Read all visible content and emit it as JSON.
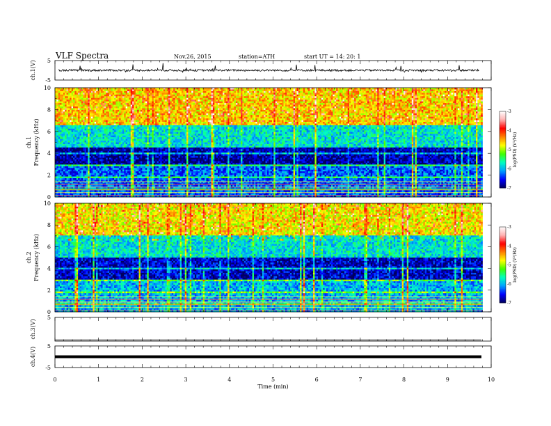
{
  "header": {
    "title": "VLF  Spectra",
    "date": "Nov.26, 2015",
    "station": "station=ATH",
    "start": "start  UT  =    14: 20: 1"
  },
  "chart_data": [
    {
      "type": "line",
      "panel": "ch1-waveform",
      "ylabel": "ch.1(V)",
      "ylim": [
        -5,
        5
      ],
      "yticks": [
        "5",
        "-5"
      ],
      "baseline": 0,
      "description_values": {
        "typical_amplitude_V": 0.5,
        "max_spike_V": 2.5
      }
    },
    {
      "type": "heatmap",
      "panel": "ch1-spectrogram",
      "ylabel": [
        "ch.1",
        "Frequency  (kHz)"
      ],
      "ylim": [
        0,
        10
      ],
      "yticks": [
        "0",
        "2",
        "4",
        "6",
        "8",
        "10"
      ],
      "colorbar": {
        "label": "log(PSD) (V²/Hz)",
        "range": [
          -7,
          -3
        ],
        "ticks": [
          "-3",
          "-4",
          "-5",
          "-6",
          "-7"
        ]
      },
      "bands": [
        {
          "from_khz": 0.0,
          "to_khz": 3.0,
          "log_psd": -6.3
        },
        {
          "from_khz": 3.0,
          "to_khz": 4.5,
          "log_psd": -6.8
        },
        {
          "from_khz": 4.5,
          "to_khz": 6.5,
          "log_psd": -5.8
        },
        {
          "from_khz": 6.5,
          "to_khz": 10.0,
          "log_psd": -4.6
        }
      ]
    },
    {
      "type": "heatmap",
      "panel": "ch2-spectrogram",
      "ylabel": [
        "ch.2",
        "Frequency  (kHz)"
      ],
      "ylim": [
        0,
        10
      ],
      "yticks": [
        "0",
        "2",
        "4",
        "6",
        "8",
        "10"
      ],
      "colorbar": {
        "label": "log(PSD) (V²/Hz)",
        "range": [
          -7,
          -3
        ],
        "ticks": [
          "-3",
          "-4",
          "-5",
          "-6",
          "-7"
        ]
      },
      "bands": [
        {
          "from_khz": 0.0,
          "to_khz": 3.0,
          "log_psd": -6.0
        },
        {
          "from_khz": 3.0,
          "to_khz": 5.0,
          "log_psd": -6.7
        },
        {
          "from_khz": 5.0,
          "to_khz": 7.0,
          "log_psd": -5.8
        },
        {
          "from_khz": 7.0,
          "to_khz": 10.0,
          "log_psd": -4.7
        }
      ]
    },
    {
      "type": "line",
      "panel": "ch3-waveform",
      "ylabel": "ch.3(V)",
      "ylim": [
        -5,
        5
      ],
      "yticks": [
        "5"
      ],
      "baseline": 0
    },
    {
      "type": "line",
      "panel": "ch4-waveform",
      "ylabel": "ch.4(V)",
      "ylim": [
        -5,
        5
      ],
      "yticks": [
        "5",
        "-5"
      ],
      "baseline": 0
    }
  ],
  "x_axis": {
    "label": "Time  (min)",
    "xlim": [
      0,
      10
    ],
    "ticks": [
      "0",
      "1",
      "2",
      "3",
      "4",
      "5",
      "6",
      "7",
      "8",
      "9",
      "10"
    ],
    "data_end_min": 9.8
  },
  "colors": {
    "colormap": [
      "#000060",
      "#0000ff",
      "#00a0ff",
      "#00ffc0",
      "#40ff00",
      "#ffff00",
      "#ff8000",
      "#ff0000",
      "#ffb0b0",
      "#ffffff"
    ],
    "trace": "#000000"
  }
}
